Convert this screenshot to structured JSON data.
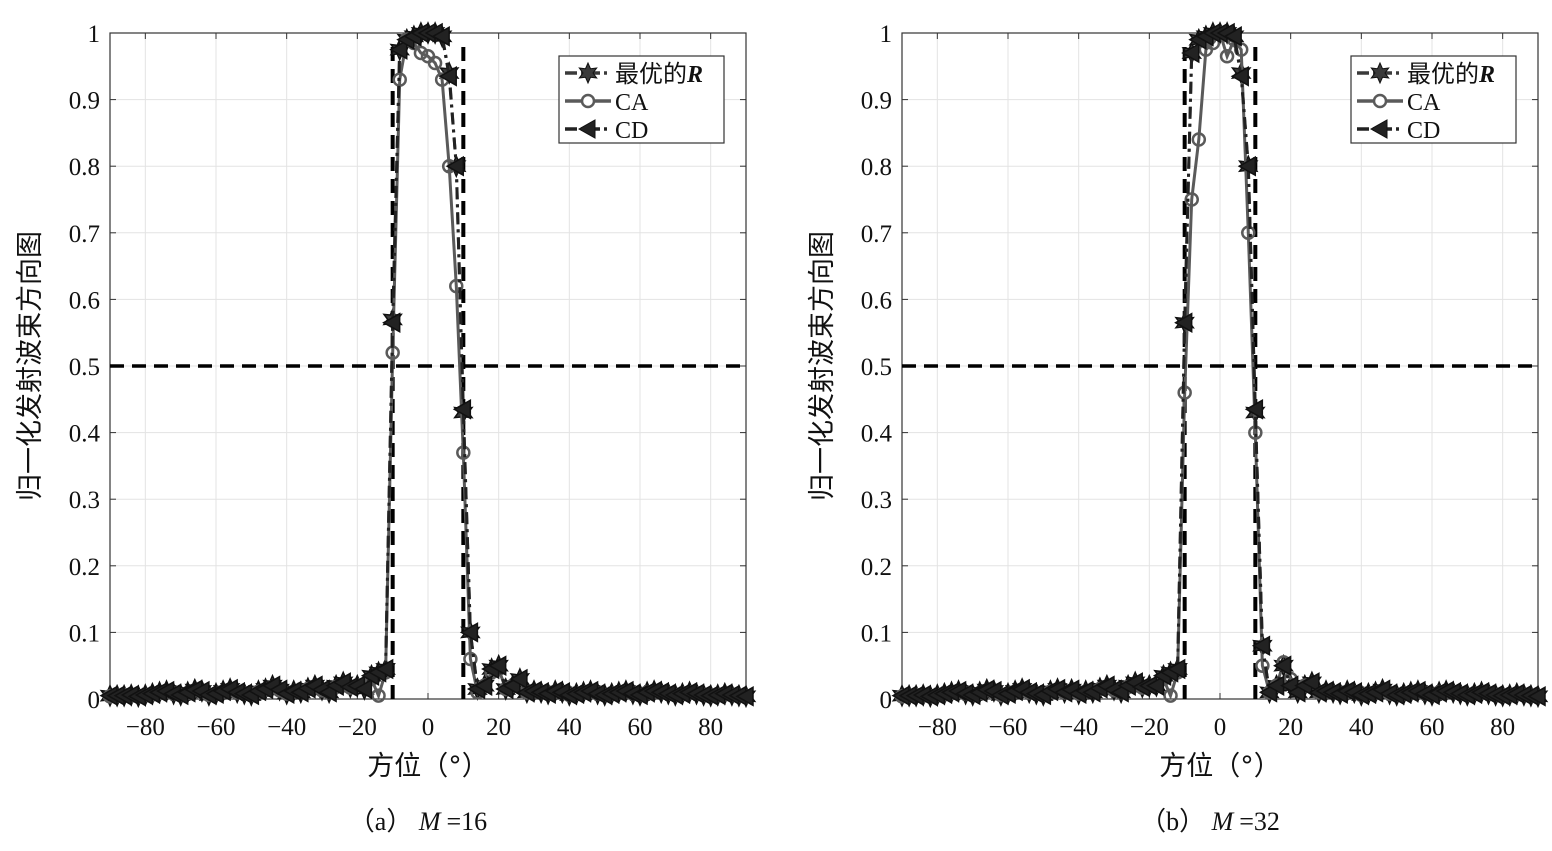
{
  "chart_data": [
    {
      "type": "line",
      "caption_prefix": "（a）",
      "caption_var": "M",
      "caption_value": "=16",
      "xlabel": "方位（°）",
      "ylabel": "归一化发射波束方向图",
      "xlim": [
        -90,
        90
      ],
      "ylim": [
        0,
        1
      ],
      "xticks": [
        -80,
        -60,
        -40,
        -20,
        0,
        20,
        40,
        60,
        80
      ],
      "yticks": [
        0,
        0.1,
        0.2,
        0.3,
        0.4,
        0.5,
        0.6,
        0.7,
        0.8,
        0.9,
        1
      ],
      "ytick_labels": [
        "0",
        "0.1",
        "0.2",
        "0.3",
        "0.4",
        "0.5",
        "0.6",
        "0.7",
        "0.8",
        "0.9",
        "1"
      ],
      "grid": true,
      "legend_position": "top-right",
      "reference": {
        "ideal_beam": [
          -10,
          10
        ],
        "half_power_level": 0.5
      },
      "x": [
        -90,
        -88,
        -86,
        -84,
        -82,
        -80,
        -78,
        -76,
        -74,
        -72,
        -70,
        -68,
        -66,
        -64,
        -62,
        -60,
        -58,
        -56,
        -54,
        -52,
        -50,
        -48,
        -46,
        -44,
        -42,
        -40,
        -38,
        -36,
        -34,
        -32,
        -30,
        -28,
        -26,
        -24,
        -22,
        -20,
        -18,
        -16,
        -14,
        -12,
        -10,
        -8,
        -6,
        -4,
        -2,
        0,
        2,
        4,
        6,
        8,
        10,
        12,
        14,
        16,
        18,
        20,
        22,
        24,
        26,
        28,
        30,
        32,
        34,
        36,
        38,
        40,
        42,
        44,
        46,
        48,
        50,
        52,
        54,
        56,
        58,
        60,
        62,
        64,
        66,
        68,
        70,
        72,
        74,
        76,
        78,
        80,
        82,
        84,
        86,
        88,
        90
      ],
      "series": [
        {
          "name": "最优的",
          "name_suffix": "R",
          "marker": "star",
          "style": "dashdot",
          "color": "#3a3a3a",
          "values": [
            0.005,
            0.005,
            0.005,
            0.006,
            0.004,
            0.006,
            0.008,
            0.01,
            0.012,
            0.008,
            0.006,
            0.01,
            0.014,
            0.012,
            0.006,
            0.008,
            0.012,
            0.015,
            0.01,
            0.008,
            0.006,
            0.012,
            0.015,
            0.02,
            0.014,
            0.008,
            0.012,
            0.01,
            0.016,
            0.02,
            0.014,
            0.01,
            0.02,
            0.025,
            0.018,
            0.02,
            0.015,
            0.035,
            0.04,
            0.045,
            0.57,
            0.975,
            0.99,
            0.995,
            1.0,
            1.0,
            1.0,
            0.995,
            0.94,
            0.8,
            0.43,
            0.1,
            0.015,
            0.02,
            0.045,
            0.05,
            0.015,
            0.02,
            0.03,
            0.01,
            0.012,
            0.01,
            0.008,
            0.012,
            0.01,
            0.006,
            0.008,
            0.01,
            0.012,
            0.008,
            0.006,
            0.008,
            0.01,
            0.012,
            0.008,
            0.006,
            0.01,
            0.012,
            0.01,
            0.008,
            0.006,
            0.008,
            0.01,
            0.008,
            0.006,
            0.005,
            0.006,
            0.008,
            0.006,
            0.005,
            0.004
          ]
        },
        {
          "name": "CA",
          "marker": "circle",
          "style": "solid",
          "color": "#5a5a5a",
          "values": [
            0.004,
            0.005,
            0.006,
            0.005,
            0.004,
            0.006,
            0.007,
            0.009,
            0.011,
            0.008,
            0.006,
            0.009,
            0.013,
            0.011,
            0.006,
            0.008,
            0.011,
            0.014,
            0.01,
            0.008,
            0.006,
            0.011,
            0.014,
            0.018,
            0.013,
            0.008,
            0.011,
            0.01,
            0.015,
            0.019,
            0.013,
            0.01,
            0.018,
            0.022,
            0.017,
            0.02,
            0.02,
            0.03,
            0.005,
            0.04,
            0.52,
            0.93,
            0.99,
            0.985,
            0.97,
            0.965,
            0.955,
            0.93,
            0.8,
            0.62,
            0.37,
            0.06,
            0.01,
            0.02,
            0.04,
            0.045,
            0.015,
            0.02,
            0.025,
            0.01,
            0.011,
            0.01,
            0.008,
            0.011,
            0.01,
            0.006,
            0.008,
            0.01,
            0.011,
            0.008,
            0.006,
            0.008,
            0.01,
            0.011,
            0.008,
            0.006,
            0.01,
            0.011,
            0.01,
            0.008,
            0.006,
            0.008,
            0.01,
            0.008,
            0.006,
            0.005,
            0.006,
            0.007,
            0.006,
            0.005,
            0.004
          ]
        },
        {
          "name": "CD",
          "marker": "triangle-left",
          "style": "dashdot",
          "color": "#222222",
          "values": [
            0.005,
            0.005,
            0.005,
            0.006,
            0.004,
            0.006,
            0.008,
            0.01,
            0.012,
            0.008,
            0.006,
            0.01,
            0.014,
            0.012,
            0.006,
            0.008,
            0.012,
            0.015,
            0.01,
            0.008,
            0.006,
            0.012,
            0.015,
            0.02,
            0.014,
            0.008,
            0.012,
            0.01,
            0.016,
            0.02,
            0.014,
            0.01,
            0.02,
            0.025,
            0.018,
            0.02,
            0.015,
            0.035,
            0.04,
            0.045,
            0.565,
            0.975,
            0.99,
            0.995,
            1.0,
            1.0,
            1.0,
            0.995,
            0.935,
            0.8,
            0.435,
            0.1,
            0.015,
            0.02,
            0.045,
            0.05,
            0.015,
            0.02,
            0.03,
            0.01,
            0.012,
            0.01,
            0.008,
            0.012,
            0.01,
            0.006,
            0.008,
            0.01,
            0.012,
            0.008,
            0.006,
            0.008,
            0.01,
            0.012,
            0.008,
            0.006,
            0.01,
            0.012,
            0.01,
            0.008,
            0.006,
            0.008,
            0.01,
            0.008,
            0.006,
            0.005,
            0.006,
            0.008,
            0.006,
            0.005,
            0.004
          ]
        }
      ]
    },
    {
      "type": "line",
      "caption_prefix": "（b）",
      "caption_var": "M",
      "caption_value": "=32",
      "xlabel": "方位（°）",
      "ylabel": "归一化发射波束方向图",
      "xlim": [
        -90,
        90
      ],
      "ylim": [
        0,
        1
      ],
      "xticks": [
        -80,
        -60,
        -40,
        -20,
        0,
        20,
        40,
        60,
        80
      ],
      "yticks": [
        0,
        0.1,
        0.2,
        0.3,
        0.4,
        0.5,
        0.6,
        0.7,
        0.8,
        0.9,
        1
      ],
      "ytick_labels": [
        "0",
        "0.1",
        "0.2",
        "0.3",
        "0.4",
        "0.5",
        "0.6",
        "0.7",
        "0.8",
        "0.9",
        "1"
      ],
      "grid": true,
      "legend_position": "top-right",
      "reference": {
        "ideal_beam": [
          -10,
          10
        ],
        "half_power_level": 0.5
      },
      "x": [
        -90,
        -88,
        -86,
        -84,
        -82,
        -80,
        -78,
        -76,
        -74,
        -72,
        -70,
        -68,
        -66,
        -64,
        -62,
        -60,
        -58,
        -56,
        -54,
        -52,
        -50,
        -48,
        -46,
        -44,
        -42,
        -40,
        -38,
        -36,
        -34,
        -32,
        -30,
        -28,
        -26,
        -24,
        -22,
        -20,
        -18,
        -16,
        -14,
        -12,
        -10,
        -8,
        -6,
        -4,
        -2,
        0,
        2,
        4,
        6,
        8,
        10,
        12,
        14,
        16,
        18,
        20,
        22,
        24,
        26,
        28,
        30,
        32,
        34,
        36,
        38,
        40,
        42,
        44,
        46,
        48,
        50,
        52,
        54,
        56,
        58,
        60,
        62,
        64,
        66,
        68,
        70,
        72,
        74,
        76,
        78,
        80,
        82,
        84,
        86,
        88,
        90
      ],
      "series": [
        {
          "name": "最优的",
          "name_suffix": "R",
          "marker": "star",
          "style": "dashdot",
          "color": "#3a3a3a",
          "values": [
            0.005,
            0.005,
            0.005,
            0.006,
            0.004,
            0.006,
            0.008,
            0.01,
            0.012,
            0.008,
            0.006,
            0.01,
            0.014,
            0.012,
            0.006,
            0.008,
            0.012,
            0.015,
            0.01,
            0.008,
            0.006,
            0.012,
            0.015,
            0.01,
            0.014,
            0.008,
            0.012,
            0.01,
            0.016,
            0.02,
            0.014,
            0.01,
            0.02,
            0.025,
            0.018,
            0.02,
            0.02,
            0.035,
            0.04,
            0.045,
            0.565,
            0.97,
            0.99,
            0.995,
            1.0,
            1.0,
            1.0,
            0.995,
            0.94,
            0.8,
            0.43,
            0.08,
            0.01,
            0.02,
            0.05,
            0.02,
            0.01,
            0.02,
            0.025,
            0.01,
            0.012,
            0.01,
            0.008,
            0.012,
            0.01,
            0.006,
            0.008,
            0.01,
            0.014,
            0.008,
            0.006,
            0.008,
            0.01,
            0.012,
            0.008,
            0.006,
            0.01,
            0.012,
            0.01,
            0.008,
            0.006,
            0.008,
            0.01,
            0.008,
            0.006,
            0.005,
            0.006,
            0.008,
            0.006,
            0.005,
            0.004
          ]
        },
        {
          "name": "CA",
          "marker": "circle",
          "style": "solid",
          "color": "#5a5a5a",
          "values": [
            0.004,
            0.005,
            0.006,
            0.005,
            0.004,
            0.006,
            0.007,
            0.009,
            0.011,
            0.008,
            0.006,
            0.009,
            0.013,
            0.011,
            0.006,
            0.008,
            0.011,
            0.014,
            0.01,
            0.008,
            0.006,
            0.011,
            0.014,
            0.01,
            0.013,
            0.008,
            0.011,
            0.01,
            0.015,
            0.019,
            0.013,
            0.01,
            0.018,
            0.022,
            0.017,
            0.02,
            0.02,
            0.03,
            0.005,
            0.04,
            0.46,
            0.75,
            0.84,
            0.975,
            0.985,
            1.0,
            0.965,
            0.99,
            0.975,
            0.7,
            0.4,
            0.05,
            0.01,
            0.02,
            0.055,
            0.03,
            0.015,
            0.02,
            0.02,
            0.01,
            0.011,
            0.01,
            0.008,
            0.011,
            0.01,
            0.006,
            0.008,
            0.01,
            0.013,
            0.008,
            0.006,
            0.008,
            0.01,
            0.011,
            0.008,
            0.006,
            0.01,
            0.011,
            0.01,
            0.008,
            0.006,
            0.008,
            0.01,
            0.008,
            0.006,
            0.005,
            0.006,
            0.007,
            0.006,
            0.005,
            0.004
          ]
        },
        {
          "name": "CD",
          "marker": "triangle-left",
          "style": "dashdot",
          "color": "#222222",
          "values": [
            0.005,
            0.005,
            0.005,
            0.006,
            0.004,
            0.006,
            0.008,
            0.01,
            0.012,
            0.008,
            0.006,
            0.01,
            0.014,
            0.012,
            0.006,
            0.008,
            0.012,
            0.015,
            0.01,
            0.008,
            0.006,
            0.012,
            0.015,
            0.01,
            0.014,
            0.008,
            0.012,
            0.01,
            0.016,
            0.02,
            0.014,
            0.01,
            0.02,
            0.025,
            0.018,
            0.02,
            0.02,
            0.035,
            0.04,
            0.045,
            0.565,
            0.97,
            0.99,
            0.995,
            1.0,
            1.0,
            1.0,
            0.995,
            0.935,
            0.8,
            0.435,
            0.08,
            0.01,
            0.02,
            0.05,
            0.02,
            0.01,
            0.02,
            0.025,
            0.01,
            0.012,
            0.01,
            0.008,
            0.012,
            0.01,
            0.006,
            0.008,
            0.01,
            0.014,
            0.008,
            0.006,
            0.008,
            0.01,
            0.012,
            0.008,
            0.006,
            0.01,
            0.012,
            0.01,
            0.008,
            0.006,
            0.008,
            0.01,
            0.008,
            0.006,
            0.005,
            0.006,
            0.008,
            0.006,
            0.005,
            0.004
          ]
        }
      ]
    }
  ]
}
